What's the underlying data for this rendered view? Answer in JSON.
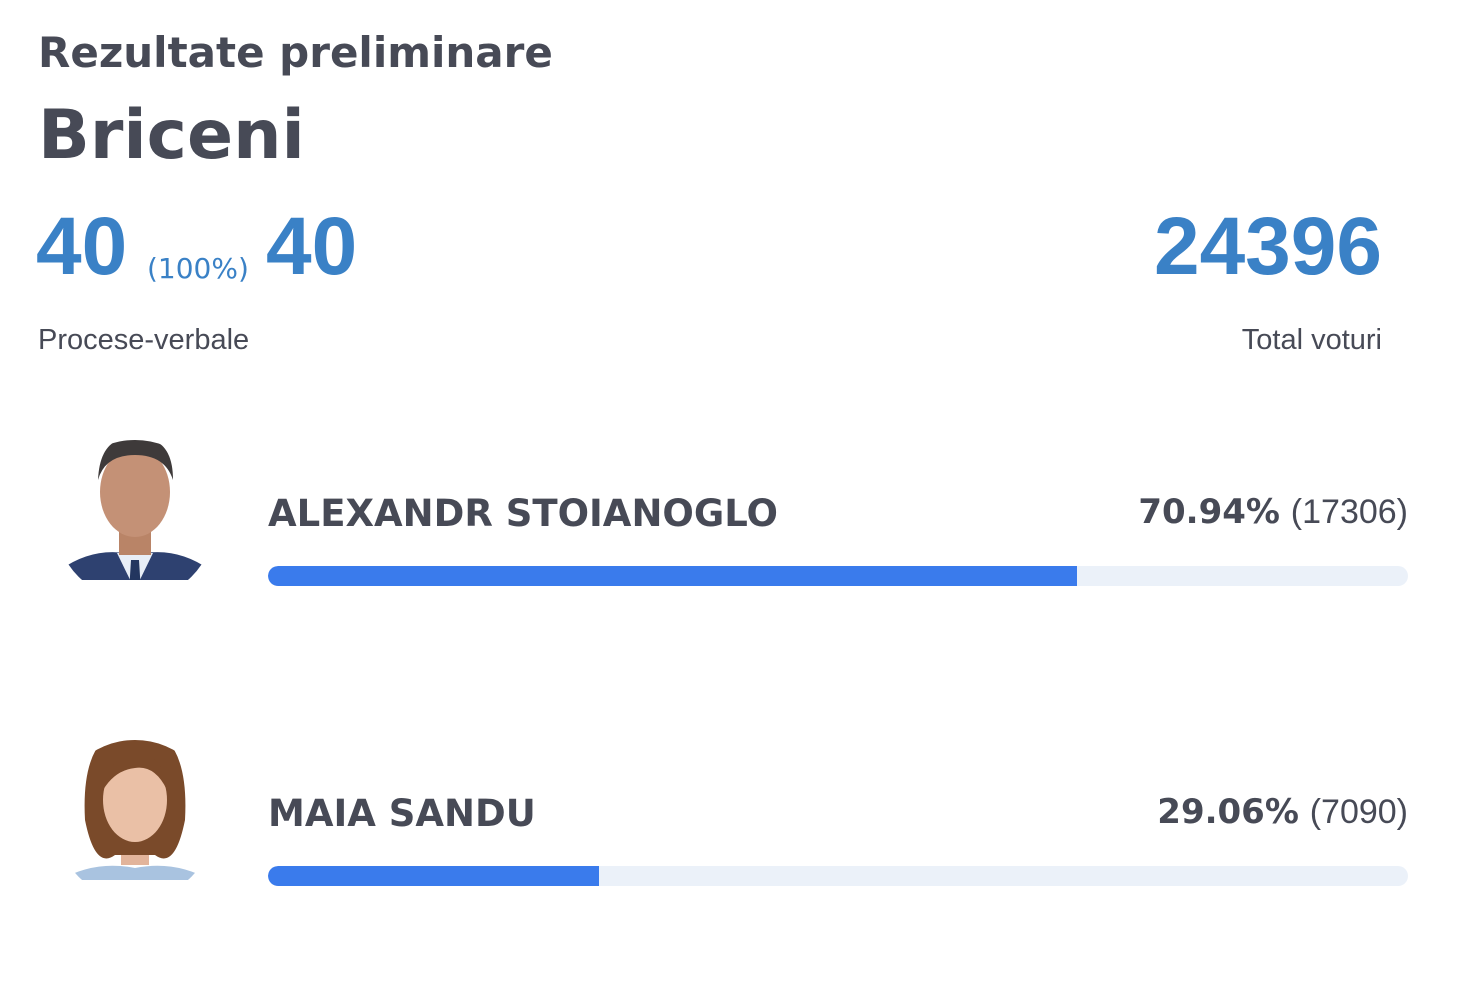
{
  "header": {
    "title": "Rezultate preliminare",
    "region": "Briceni"
  },
  "stats": {
    "processed": 40,
    "processed_pct": "(100%)",
    "total_reports": 40,
    "reports_label": "Procese-verbale",
    "total_votes": 24396,
    "votes_label": "Total voturi"
  },
  "candidates": [
    {
      "name": "ALEXANDR STOIANOGLO",
      "percent": 70.94,
      "percent_label": "70.94%",
      "votes": 17306,
      "votes_label": "(17306)"
    },
    {
      "name": "MAIA SANDU",
      "percent": 29.06,
      "percent_label": "29.06%",
      "votes": 7090,
      "votes_label": "(7090)"
    }
  ]
}
